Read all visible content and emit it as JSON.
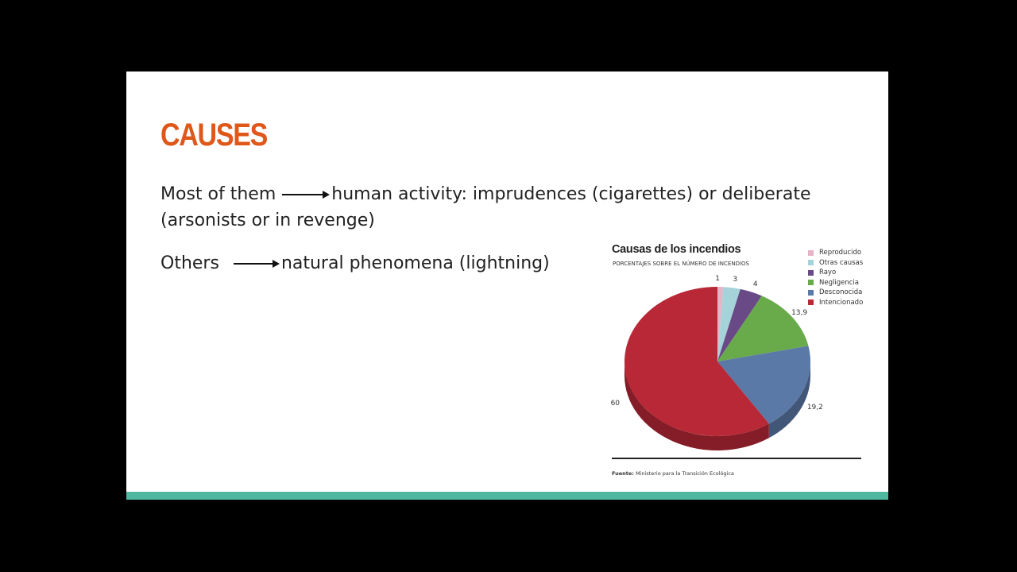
{
  "slide": {
    "title": "CAUSES",
    "line1_a": "Most of them",
    "line1_b": "human activity: imprudences (cigarettes) or deliberate",
    "line1_c": "(arsonists or in revenge)",
    "line2_a": "Others",
    "line2_b": "natural phenomena (lightning)"
  },
  "chart_data": {
    "type": "pie",
    "title": "Causas de los incendios",
    "subtitle": "PORCENTAJES SOBRE EL NÚMERO DE INCENDIOS",
    "source_label": "Fuente:",
    "source": "Ministerio para la Transición Ecológica",
    "legend_position": "top-right",
    "slices": [
      {
        "name": "Reproducido",
        "value": 1,
        "label": "1",
        "color": "#e6b3c7"
      },
      {
        "name": "Otras causas",
        "value": 3,
        "label": "3",
        "color": "#a5d3d9"
      },
      {
        "name": "Rayo",
        "value": 4,
        "label": "4",
        "color": "#6a4a86"
      },
      {
        "name": "Negligencia",
        "value": 13.9,
        "label": "13,9",
        "color": "#69ab4b"
      },
      {
        "name": "Desconocida",
        "value": 19.2,
        "label": "19,2",
        "color": "#5b79a6"
      },
      {
        "name": "Intencionado",
        "value": 60,
        "label": "60",
        "color": "#b82836"
      }
    ]
  }
}
